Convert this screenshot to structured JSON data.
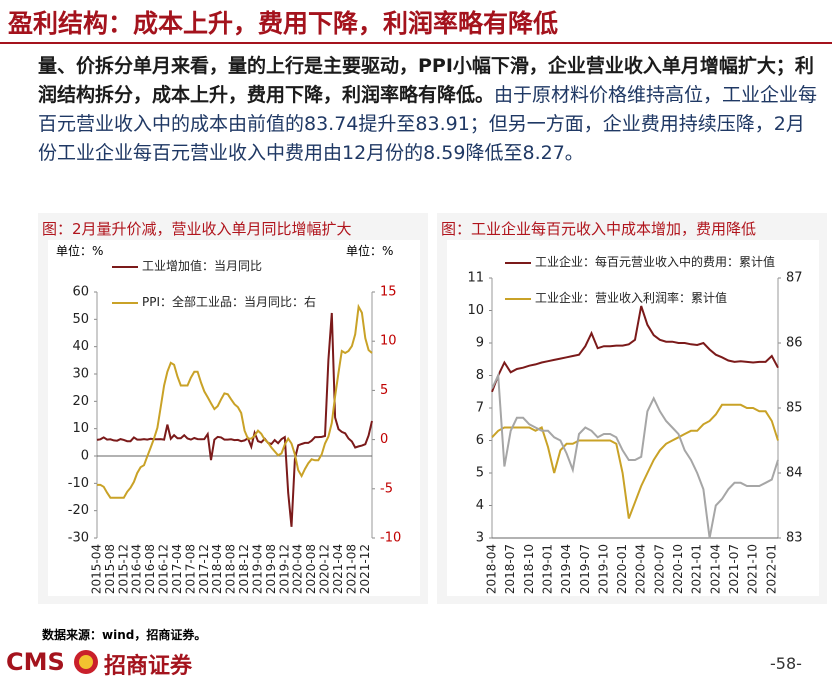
{
  "header": {
    "title": "盈利结构：成本上升，费用下降，利润率略有降低"
  },
  "body": {
    "lead": "量、价拆分单月来看，量的上行是主要驱动，PPI小幅下滑，企业营业收入单月增幅扩大；利润结构拆分，成本上升，费用下降，利润率略有降低。",
    "text": "由于原材料价格维持高位，工业企业每百元营业收入中的成本由前值的83.74提升至83.91；但另一方面，企业费用持续压降，2月份工业企业每百元营业收入中费用由12月份的8.59降低至8.27。"
  },
  "chart_data": [
    {
      "type": "line",
      "title": "图：2月量升价减，营业收入单月同比增幅扩大",
      "y_unit": "单位：%",
      "y2_unit": "单位：%",
      "legend": "top-left",
      "y2tick_color": "#c00000",
      "categories": [
        "2015-04",
        null,
        null,
        null,
        "2015-08",
        null,
        null,
        null,
        "2015-12",
        null,
        null,
        null,
        "2016-04",
        null,
        null,
        null,
        "2016-08",
        null,
        null,
        null,
        "2016-12",
        null,
        null,
        null,
        "2017-04",
        null,
        null,
        null,
        "2017-08",
        null,
        null,
        null,
        "2017-12",
        null,
        null,
        null,
        "2018-04",
        null,
        null,
        null,
        "2018-08",
        null,
        null,
        null,
        "2018-12",
        null,
        null,
        null,
        "2019-04",
        null,
        null,
        null,
        "2019-08",
        null,
        null,
        null,
        "2019-12",
        null,
        null,
        null,
        "2020-04",
        null,
        null,
        null,
        "2020-08",
        null,
        null,
        null,
        "2020-12",
        null,
        null,
        null,
        "2021-04",
        null,
        null,
        null,
        "2021-08",
        null,
        null,
        null,
        "2021-12",
        null,
        null
      ],
      "series": [
        {
          "name": "工业增加值：当月同比",
          "color": "#7b1a1a",
          "values": [
            5.9,
            6.1,
            6.8,
            6.0,
            6.1,
            5.7,
            5.6,
            6.2,
            5.9,
            5.4,
            5.4,
            6.8,
            6.0,
            6.0,
            6.2,
            6.0,
            6.3,
            6.1,
            6.1,
            6.2,
            6.0,
            11.5,
            6.3,
            7.6,
            6.5,
            6.5,
            7.6,
            6.4,
            6.0,
            6.6,
            6.2,
            6.1,
            6.2,
            8.0,
            -1.5,
            6.0,
            7.0,
            6.8,
            6.0,
            6.0,
            6.1,
            5.8,
            5.9,
            5.4,
            5.7,
            6.5,
            3.4,
            8.5,
            5.4,
            5.0,
            6.3,
            4.8,
            4.4,
            5.8,
            4.7,
            6.2,
            6.9,
            -13.5,
            -25.9,
            -1.1,
            3.9,
            4.4,
            4.8,
            4.8,
            5.6,
            6.9,
            6.9,
            7.0,
            7.3,
            35.1,
            52.3,
            14.1,
            9.8,
            8.8,
            8.3,
            6.4,
            5.3,
            3.1,
            3.5,
            3.8,
            4.3,
            7.5,
            12.8
          ]
        },
        {
          "name": "PPI：全部工业品：当月同比：右",
          "color": "#c9a227",
          "axis": "y2",
          "values": [
            -4.6,
            -4.6,
            -4.8,
            -5.4,
            -5.9,
            -5.9,
            -5.9,
            -5.9,
            -5.9,
            -5.3,
            -4.9,
            -4.3,
            -3.4,
            -2.8,
            -2.6,
            -1.7,
            -0.8,
            0.1,
            1.2,
            3.3,
            5.5,
            6.9,
            7.8,
            7.6,
            6.4,
            5.5,
            5.5,
            5.5,
            6.3,
            6.9,
            6.9,
            5.8,
            4.9,
            4.3,
            3.7,
            3.1,
            3.4,
            4.1,
            4.7,
            4.6,
            4.1,
            3.6,
            3.3,
            2.7,
            0.9,
            0.1,
            0.1,
            0.4,
            0.9,
            0.6,
            0.0,
            -0.3,
            -0.8,
            -1.2,
            -1.6,
            -1.4,
            -0.5,
            0.1,
            -0.4,
            -1.5,
            -3.1,
            -3.7,
            -3.0,
            -2.4,
            -2.0,
            -2.1,
            -2.1,
            -1.5,
            -0.4,
            0.3,
            1.7,
            4.4,
            6.8,
            9.0,
            8.8,
            9.0,
            9.5,
            10.7,
            13.5,
            12.9,
            10.3,
            9.1,
            8.8
          ]
        }
      ],
      "ylim": [
        -30,
        60
      ],
      "yticks": [
        -30,
        -20,
        -10,
        0,
        10,
        20,
        30,
        40,
        50,
        60
      ],
      "y2lim": [
        -10,
        15
      ],
      "y2ticks": [
        -10,
        -5,
        0,
        5,
        10,
        15
      ]
    },
    {
      "type": "line",
      "title": "图：工业企业每百元收入中成本增加，费用降低",
      "legend": "top-left",
      "annotation": "V",
      "categories": [
        "2018-04",
        null,
        null,
        "2018-07",
        null,
        null,
        "2018-10",
        null,
        null,
        "2019-01",
        null,
        null,
        "2019-04",
        null,
        null,
        "2019-07",
        null,
        null,
        "2019-10",
        null,
        null,
        "2020-01",
        null,
        null,
        "2020-04",
        null,
        null,
        "2020-07",
        null,
        null,
        "2020-10",
        null,
        null,
        "2021-01",
        null,
        null,
        "2021-04",
        null,
        null,
        "2021-07",
        null,
        null,
        "2021-10",
        null,
        null,
        "2022-01",
        null
      ],
      "series": [
        {
          "name": "工业企业：每百元营业收入中的费用：累计值",
          "color": "#7b1a1a",
          "axis": "y2",
          "values": [
            85.25,
            85.5,
            85.7,
            85.55,
            85.6,
            85.62,
            85.65,
            85.67,
            85.7,
            85.72,
            85.74,
            85.76,
            85.78,
            85.8,
            85.82,
            85.95,
            86.15,
            85.92,
            85.95,
            85.95,
            85.96,
            85.96,
            85.98,
            86.05,
            86.57,
            86.28,
            86.12,
            86.05,
            86.02,
            86.02,
            86.0,
            86.0,
            85.98,
            85.97,
            86.0,
            85.9,
            85.82,
            85.78,
            85.73,
            85.71,
            85.72,
            85.71,
            85.7,
            85.71,
            85.71,
            85.8,
            85.62
          ]
        },
        {
          "name": "工业企业：营业收入利润率：累计值",
          "color": "#c9a227",
          "values": [
            6.1,
            6.3,
            6.4,
            6.4,
            6.4,
            6.4,
            6.4,
            6.3,
            6.4,
            5.8,
            5.0,
            5.7,
            5.9,
            5.9,
            6.0,
            6.0,
            6.0,
            6.0,
            6.0,
            6.0,
            5.9,
            5.0,
            3.6,
            4.1,
            4.6,
            5.0,
            5.4,
            5.7,
            5.9,
            6.0,
            6.1,
            6.2,
            6.3,
            6.3,
            6.5,
            6.6,
            6.8,
            7.1,
            7.1,
            7.1,
            7.1,
            7.0,
            7.0,
            6.9,
            6.9,
            6.6,
            6.0
          ]
        },
        {
          "color": "#a6a6a6",
          "values": [
            7.6,
            8.0,
            5.2,
            6.3,
            6.7,
            6.7,
            6.5,
            6.4,
            6.3,
            6.3,
            6.1,
            6.0,
            5.6,
            5.1,
            6.2,
            6.4,
            6.3,
            6.1,
            6.2,
            6.2,
            6.1,
            5.7,
            5.4,
            5.4,
            5.5,
            6.9,
            7.3,
            6.9,
            6.6,
            6.4,
            6.2,
            5.7,
            5.4,
            5.0,
            4.5,
            3.0,
            4.0,
            4.2,
            4.5,
            4.7,
            4.7,
            4.6,
            4.6,
            4.6,
            4.7,
            4.8,
            5.4
          ]
        }
      ],
      "ylim": [
        3,
        11
      ],
      "yticks": [
        3,
        4,
        5,
        6,
        7,
        8,
        9,
        10,
        11
      ],
      "y2lim": [
        83,
        87
      ],
      "y2ticks": [
        83,
        84,
        85,
        86,
        87
      ]
    }
  ],
  "footer": {
    "source": "数据来源：wind，招商证券。",
    "logo_en": "CMS",
    "logo_cn": "招商证券",
    "page": "-58-"
  }
}
